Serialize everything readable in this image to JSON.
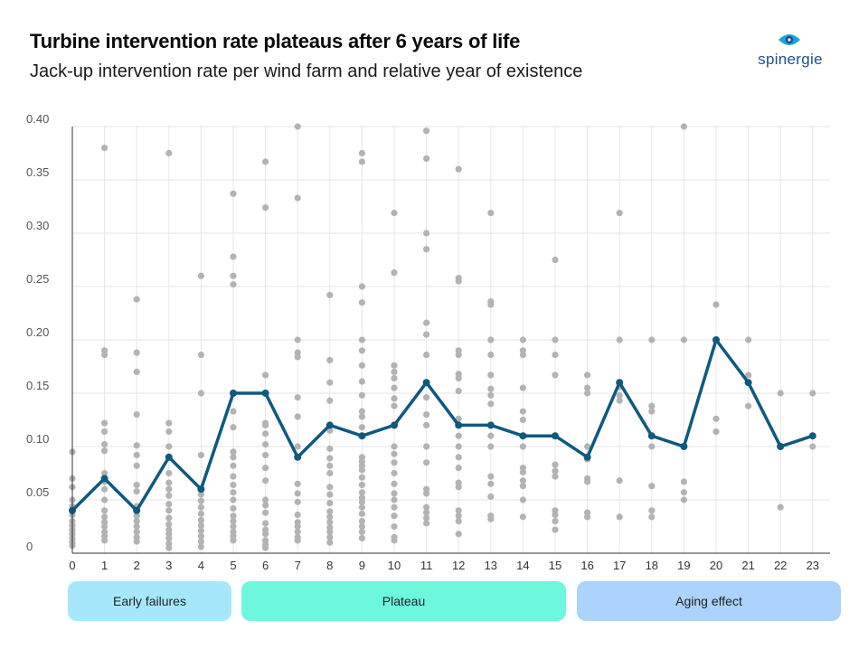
{
  "header": {
    "title": "Turbine intervention rate plateaus after 6 years of life",
    "subtitle": "Jack-up intervention rate per wind farm and relative year of existence"
  },
  "brand": {
    "name": "spinergie",
    "color": "#1f4f8f",
    "mark_color": "#1aa3d9"
  },
  "colors": {
    "line": "#0d5a7e",
    "dots": "#b3b3b3",
    "grid": "#e6e6e6",
    "axis": "#333333",
    "early": "#a6e8fb",
    "plateau": "#6df7dc",
    "aging": "#abd3fb"
  },
  "phases": {
    "early_label": "Early failures",
    "plateau_label": "Plateau",
    "aging_label": "Aging effect"
  },
  "chart_data": {
    "type": "scatter",
    "title": "",
    "xlabel": "",
    "ylabel": "",
    "x_categories": [
      "0",
      "1",
      "2",
      "3",
      "4",
      "5",
      "6",
      "7",
      "8",
      "9",
      "10",
      "11",
      "12",
      "13",
      "14",
      "15",
      "16",
      "17",
      "18",
      "19",
      "20",
      "21",
      "22",
      "23"
    ],
    "ylim": [
      0,
      0.4
    ],
    "y_ticks": [
      "0",
      "0.05",
      "0.10",
      "0.15",
      "0.20",
      "0.25",
      "0.30",
      "0.35",
      "0.40"
    ],
    "y_tick_values": [
      0,
      0.05,
      0.1,
      0.15,
      0.2,
      0.25,
      0.3,
      0.35,
      0.4
    ],
    "grid": true,
    "series": [
      {
        "values": [
          0.04,
          0.07,
          0.04,
          0.09,
          0.06,
          0.15,
          0.15,
          0.09,
          0.12,
          0.11,
          0.12,
          0.16,
          0.12,
          0.12,
          0.11,
          0.11,
          0.09,
          0.16,
          0.11,
          0.1,
          0.2,
          0.16,
          0.1,
          0.11
        ]
      }
    ],
    "scatter_points": [
      [
        0,
        0.095
      ],
      [
        0,
        0.07
      ],
      [
        0,
        0.062
      ],
      [
        0,
        0.05
      ],
      [
        0,
        0.044
      ],
      [
        0,
        0.036
      ],
      [
        0,
        0.03
      ],
      [
        0,
        0.026
      ],
      [
        0,
        0.022
      ],
      [
        0,
        0.018
      ],
      [
        0,
        0.014
      ],
      [
        0,
        0.01
      ],
      [
        0,
        0.007
      ],
      [
        1,
        0.38
      ],
      [
        1,
        0.19
      ],
      [
        1,
        0.186
      ],
      [
        1,
        0.122
      ],
      [
        1,
        0.114
      ],
      [
        1,
        0.102
      ],
      [
        1,
        0.096
      ],
      [
        1,
        0.075
      ],
      [
        1,
        0.067
      ],
      [
        1,
        0.06
      ],
      [
        1,
        0.05
      ],
      [
        1,
        0.04
      ],
      [
        1,
        0.034
      ],
      [
        1,
        0.029
      ],
      [
        1,
        0.025
      ],
      [
        1,
        0.02
      ],
      [
        1,
        0.016
      ],
      [
        1,
        0.012
      ],
      [
        2,
        0.238
      ],
      [
        2,
        0.188
      ],
      [
        2,
        0.17
      ],
      [
        2,
        0.13
      ],
      [
        2,
        0.101
      ],
      [
        2,
        0.092
      ],
      [
        2,
        0.082
      ],
      [
        2,
        0.064
      ],
      [
        2,
        0.058
      ],
      [
        2,
        0.044
      ],
      [
        2,
        0.035
      ],
      [
        2,
        0.03
      ],
      [
        2,
        0.025
      ],
      [
        2,
        0.02
      ],
      [
        2,
        0.015
      ],
      [
        2,
        0.011
      ],
      [
        3,
        0.375
      ],
      [
        3,
        0.122
      ],
      [
        3,
        0.114
      ],
      [
        3,
        0.1
      ],
      [
        3,
        0.075
      ],
      [
        3,
        0.066
      ],
      [
        3,
        0.06
      ],
      [
        3,
        0.054
      ],
      [
        3,
        0.046
      ],
      [
        3,
        0.04
      ],
      [
        3,
        0.033
      ],
      [
        3,
        0.027
      ],
      [
        3,
        0.022
      ],
      [
        3,
        0.018
      ],
      [
        3,
        0.014
      ],
      [
        3,
        0.009
      ],
      [
        3,
        0.005
      ],
      [
        4,
        0.26
      ],
      [
        4,
        0.186
      ],
      [
        4,
        0.15
      ],
      [
        4,
        0.092
      ],
      [
        4,
        0.061
      ],
      [
        4,
        0.055
      ],
      [
        4,
        0.049
      ],
      [
        4,
        0.043
      ],
      [
        4,
        0.037
      ],
      [
        4,
        0.031
      ],
      [
        4,
        0.026
      ],
      [
        4,
        0.021
      ],
      [
        4,
        0.016
      ],
      [
        4,
        0.011
      ],
      [
        4,
        0.006
      ],
      [
        5,
        0.337
      ],
      [
        5,
        0.278
      ],
      [
        5,
        0.26
      ],
      [
        5,
        0.252
      ],
      [
        5,
        0.133
      ],
      [
        5,
        0.118
      ],
      [
        5,
        0.095
      ],
      [
        5,
        0.09
      ],
      [
        5,
        0.082
      ],
      [
        5,
        0.072
      ],
      [
        5,
        0.064
      ],
      [
        5,
        0.057
      ],
      [
        5,
        0.05
      ],
      [
        5,
        0.042
      ],
      [
        5,
        0.035
      ],
      [
        5,
        0.03
      ],
      [
        5,
        0.025
      ],
      [
        5,
        0.02
      ],
      [
        5,
        0.016
      ],
      [
        5,
        0.012
      ],
      [
        6,
        0.367
      ],
      [
        6,
        0.324
      ],
      [
        6,
        0.167
      ],
      [
        6,
        0.122
      ],
      [
        6,
        0.12
      ],
      [
        6,
        0.112
      ],
      [
        6,
        0.102
      ],
      [
        6,
        0.092
      ],
      [
        6,
        0.08
      ],
      [
        6,
        0.068
      ],
      [
        6,
        0.05
      ],
      [
        6,
        0.045
      ],
      [
        6,
        0.038
      ],
      [
        6,
        0.028
      ],
      [
        6,
        0.022
      ],
      [
        6,
        0.018
      ],
      [
        6,
        0.012
      ],
      [
        6,
        0.008
      ],
      [
        6,
        0.005
      ],
      [
        7,
        0.4
      ],
      [
        7,
        0.333
      ],
      [
        7,
        0.2
      ],
      [
        7,
        0.188
      ],
      [
        7,
        0.184
      ],
      [
        7,
        0.146
      ],
      [
        7,
        0.128
      ],
      [
        7,
        0.1
      ],
      [
        7,
        0.065
      ],
      [
        7,
        0.056
      ],
      [
        7,
        0.048
      ],
      [
        7,
        0.036
      ],
      [
        7,
        0.029
      ],
      [
        7,
        0.025
      ],
      [
        7,
        0.02
      ],
      [
        7,
        0.015
      ],
      [
        7,
        0.012
      ],
      [
        8,
        0.242
      ],
      [
        8,
        0.181
      ],
      [
        8,
        0.16
      ],
      [
        8,
        0.143
      ],
      [
        8,
        0.115
      ],
      [
        8,
        0.098
      ],
      [
        8,
        0.089
      ],
      [
        8,
        0.082
      ],
      [
        8,
        0.075
      ],
      [
        8,
        0.062
      ],
      [
        8,
        0.055
      ],
      [
        8,
        0.047
      ],
      [
        8,
        0.039
      ],
      [
        8,
        0.034
      ],
      [
        8,
        0.029
      ],
      [
        8,
        0.024
      ],
      [
        8,
        0.02
      ],
      [
        8,
        0.015
      ],
      [
        8,
        0.01
      ],
      [
        9,
        0.375
      ],
      [
        9,
        0.367
      ],
      [
        9,
        0.25
      ],
      [
        9,
        0.235
      ],
      [
        9,
        0.2
      ],
      [
        9,
        0.19
      ],
      [
        9,
        0.176
      ],
      [
        9,
        0.161
      ],
      [
        9,
        0.148
      ],
      [
        9,
        0.133
      ],
      [
        9,
        0.128
      ],
      [
        9,
        0.118
      ],
      [
        9,
        0.11
      ],
      [
        9,
        0.09
      ],
      [
        9,
        0.086
      ],
      [
        9,
        0.082
      ],
      [
        9,
        0.078
      ],
      [
        9,
        0.071
      ],
      [
        9,
        0.064
      ],
      [
        9,
        0.057
      ],
      [
        9,
        0.052
      ],
      [
        9,
        0.048
      ],
      [
        9,
        0.043
      ],
      [
        9,
        0.037
      ],
      [
        9,
        0.03
      ],
      [
        9,
        0.025
      ],
      [
        9,
        0.02
      ],
      [
        9,
        0.014
      ],
      [
        10,
        0.319
      ],
      [
        10,
        0.263
      ],
      [
        10,
        0.176
      ],
      [
        10,
        0.17
      ],
      [
        10,
        0.164
      ],
      [
        10,
        0.155
      ],
      [
        10,
        0.145
      ],
      [
        10,
        0.138
      ],
      [
        10,
        0.1
      ],
      [
        10,
        0.093
      ],
      [
        10,
        0.085
      ],
      [
        10,
        0.075
      ],
      [
        10,
        0.065
      ],
      [
        10,
        0.056
      ],
      [
        10,
        0.05
      ],
      [
        10,
        0.043
      ],
      [
        10,
        0.035
      ],
      [
        10,
        0.025
      ],
      [
        10,
        0.015
      ],
      [
        10,
        0.012
      ],
      [
        11,
        0.396
      ],
      [
        11,
        0.37
      ],
      [
        11,
        0.3
      ],
      [
        11,
        0.285
      ],
      [
        11,
        0.216
      ],
      [
        11,
        0.205
      ],
      [
        11,
        0.186
      ],
      [
        11,
        0.146
      ],
      [
        11,
        0.13
      ],
      [
        11,
        0.12
      ],
      [
        11,
        0.1
      ],
      [
        11,
        0.085
      ],
      [
        11,
        0.06
      ],
      [
        11,
        0.056
      ],
      [
        11,
        0.043
      ],
      [
        11,
        0.038
      ],
      [
        11,
        0.033
      ],
      [
        11,
        0.028
      ],
      [
        12,
        0.36
      ],
      [
        12,
        0.258
      ],
      [
        12,
        0.255
      ],
      [
        12,
        0.19
      ],
      [
        12,
        0.186
      ],
      [
        12,
        0.168
      ],
      [
        12,
        0.164
      ],
      [
        12,
        0.152
      ],
      [
        12,
        0.126
      ],
      [
        12,
        0.11
      ],
      [
        12,
        0.1
      ],
      [
        12,
        0.09
      ],
      [
        12,
        0.08
      ],
      [
        12,
        0.066
      ],
      [
        12,
        0.062
      ],
      [
        12,
        0.04
      ],
      [
        12,
        0.035
      ],
      [
        12,
        0.03
      ],
      [
        12,
        0.018
      ],
      [
        13,
        0.319
      ],
      [
        13,
        0.236
      ],
      [
        13,
        0.233
      ],
      [
        13,
        0.2
      ],
      [
        13,
        0.186
      ],
      [
        13,
        0.167
      ],
      [
        13,
        0.154
      ],
      [
        13,
        0.148
      ],
      [
        13,
        0.14
      ],
      [
        13,
        0.12
      ],
      [
        13,
        0.11
      ],
      [
        13,
        0.1
      ],
      [
        13,
        0.072
      ],
      [
        13,
        0.065
      ],
      [
        13,
        0.053
      ],
      [
        13,
        0.035
      ],
      [
        13,
        0.032
      ],
      [
        14,
        0.2
      ],
      [
        14,
        0.19
      ],
      [
        14,
        0.186
      ],
      [
        14,
        0.155
      ],
      [
        14,
        0.133
      ],
      [
        14,
        0.125
      ],
      [
        14,
        0.11
      ],
      [
        14,
        0.1
      ],
      [
        14,
        0.08
      ],
      [
        14,
        0.076
      ],
      [
        14,
        0.068
      ],
      [
        14,
        0.063
      ],
      [
        14,
        0.05
      ],
      [
        14,
        0.034
      ],
      [
        15,
        0.275
      ],
      [
        15,
        0.2
      ],
      [
        15,
        0.186
      ],
      [
        15,
        0.167
      ],
      [
        15,
        0.11
      ],
      [
        15,
        0.083
      ],
      [
        15,
        0.077
      ],
      [
        15,
        0.072
      ],
      [
        15,
        0.04
      ],
      [
        15,
        0.036
      ],
      [
        15,
        0.03
      ],
      [
        15,
        0.022
      ],
      [
        16,
        0.167
      ],
      [
        16,
        0.155
      ],
      [
        16,
        0.15
      ],
      [
        16,
        0.1
      ],
      [
        16,
        0.088
      ],
      [
        16,
        0.07
      ],
      [
        16,
        0.067
      ],
      [
        16,
        0.038
      ],
      [
        16,
        0.034
      ],
      [
        17,
        0.319
      ],
      [
        17,
        0.2
      ],
      [
        17,
        0.156
      ],
      [
        17,
        0.148
      ],
      [
        17,
        0.143
      ],
      [
        17,
        0.068
      ],
      [
        17,
        0.034
      ],
      [
        18,
        0.2
      ],
      [
        18,
        0.138
      ],
      [
        18,
        0.133
      ],
      [
        18,
        0.1
      ],
      [
        18,
        0.063
      ],
      [
        18,
        0.04
      ],
      [
        18,
        0.034
      ],
      [
        19,
        0.4
      ],
      [
        19,
        0.2
      ],
      [
        19,
        0.067
      ],
      [
        19,
        0.057
      ],
      [
        19,
        0.05
      ],
      [
        20,
        0.233
      ],
      [
        20,
        0.2
      ],
      [
        20,
        0.126
      ],
      [
        20,
        0.114
      ],
      [
        21,
        0.2
      ],
      [
        21,
        0.167
      ],
      [
        21,
        0.138
      ],
      [
        22,
        0.15
      ],
      [
        22,
        0.043
      ],
      [
        23,
        0.15
      ],
      [
        23,
        0.1
      ]
    ]
  }
}
